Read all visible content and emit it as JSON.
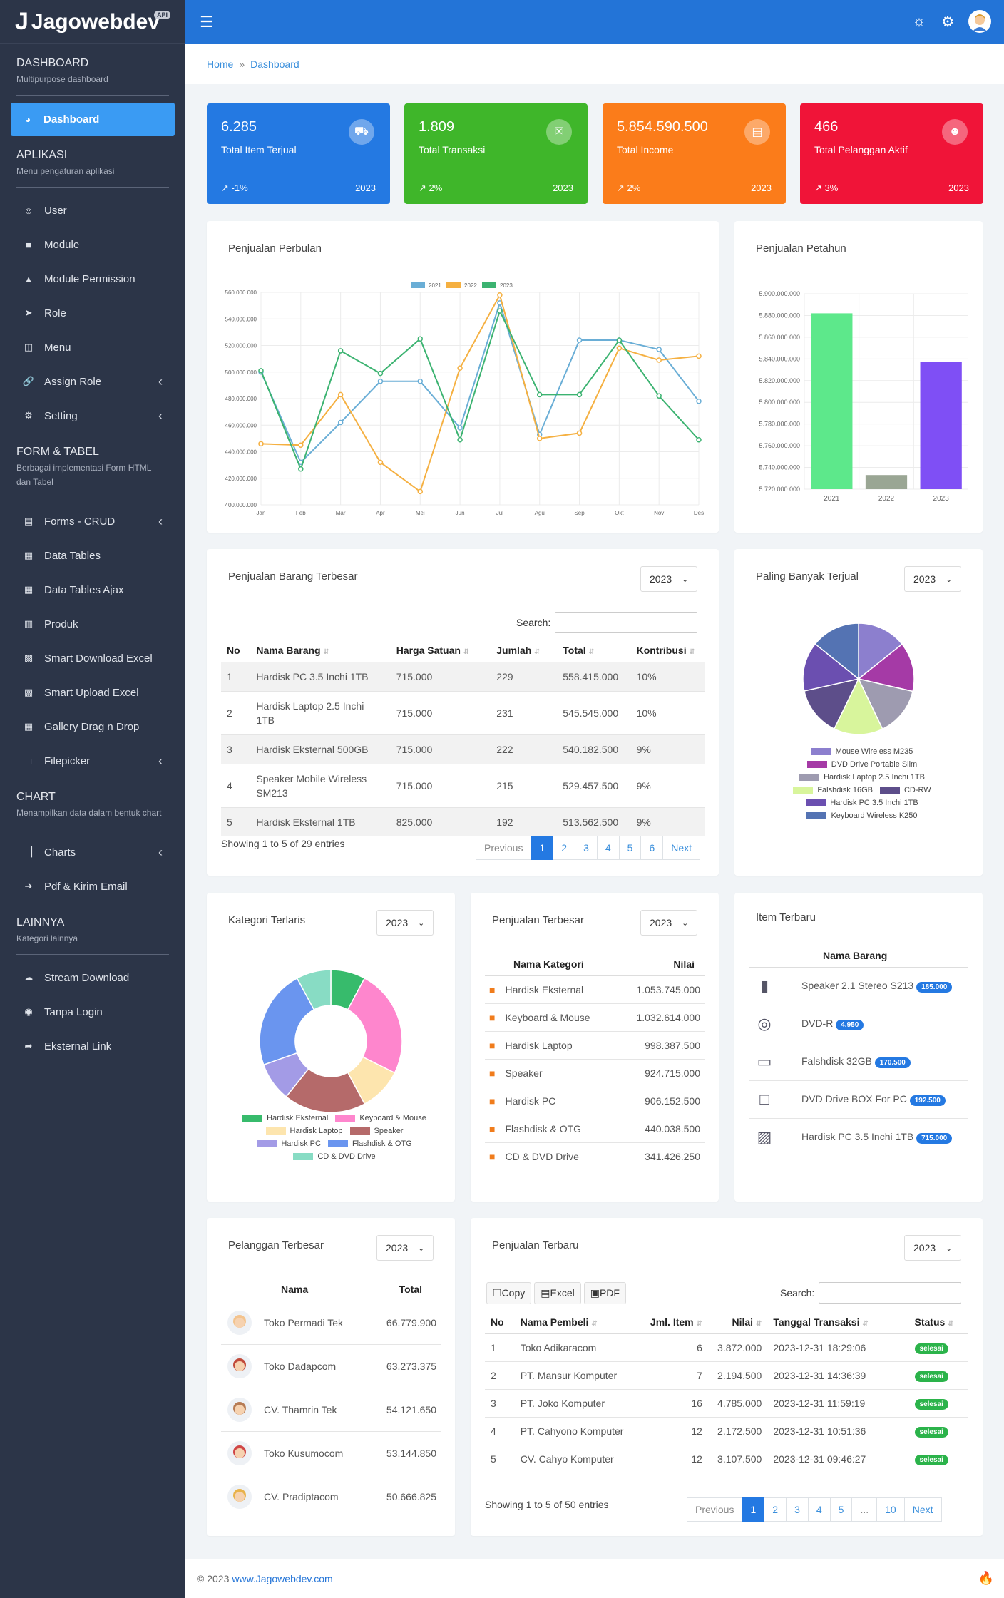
{
  "brand": {
    "name": "Jagowebdev",
    "badge": "API"
  },
  "sidebar": {
    "sections": [
      {
        "title": "DASHBOARD",
        "subtitle": "Multipurpose dashboard"
      },
      {
        "title": "APLIKASI",
        "subtitle": "Menu pengaturan aplikasi"
      },
      {
        "title": "FORM & TABEL",
        "subtitle": "Berbagai implementasi Form HTML dan Tabel"
      },
      {
        "title": "CHART",
        "subtitle": "Menampilkan data dalam bentuk chart"
      },
      {
        "title": "LAINNYA",
        "subtitle": "Kategori lainnya"
      }
    ],
    "active": "Dashboard",
    "aplikasi": [
      "User",
      "Module",
      "Module Permission",
      "Role",
      "Menu",
      "Assign Role",
      "Setting"
    ],
    "form": [
      "Forms - CRUD",
      "Data Tables",
      "Data Tables Ajax",
      "Produk",
      "Smart Download Excel",
      "Smart Upload Excel",
      "Gallery Drag n Drop",
      "Filepicker"
    ],
    "chart": [
      "Charts",
      "Pdf & Kirim Email"
    ],
    "lainnya": [
      "Stream Download",
      "Tanpa Login",
      "Eksternal Link"
    ]
  },
  "breadcrumb": {
    "home": "Home",
    "current": "Dashboard"
  },
  "stats": [
    {
      "value": "6.285",
      "label": "Total Item Terjual",
      "change": "-1%",
      "year": "2023",
      "color": "#2479e2",
      "icon": "truck-icon"
    },
    {
      "value": "1.809",
      "label": "Total Transaksi",
      "change": "2%",
      "year": "2023",
      "color": "#3fb62a",
      "icon": "bag-icon"
    },
    {
      "value": "5.854.590.500",
      "label": "Total Income",
      "change": "2%",
      "year": "2023",
      "color": "#fb7c1a",
      "icon": "money-icon"
    },
    {
      "value": "466",
      "label": "Total Pelanggan Aktif",
      "change": "3%",
      "year": "2023",
      "color": "#f01438",
      "icon": "user-icon"
    }
  ],
  "chart_data": [
    {
      "type": "line",
      "title": "Penjualan Perbulan",
      "categories": [
        "Jan",
        "Feb",
        "Mar",
        "Apr",
        "Mei",
        "Jun",
        "Jul",
        "Agu",
        "Sep",
        "Okt",
        "Nov",
        "Des"
      ],
      "series": [
        {
          "name": "2021",
          "color": "#6aaed6",
          "values": [
            500000000,
            432000000,
            462000000,
            493000000,
            493000000,
            458000000,
            552000000,
            453000000,
            524000000,
            524000000,
            517000000,
            478000000
          ]
        },
        {
          "name": "2022",
          "color": "#f5b041",
          "values": [
            446000000,
            445000000,
            483000000,
            432000000,
            410000000,
            503000000,
            558000000,
            450000000,
            454000000,
            518000000,
            509000000,
            512000000
          ]
        },
        {
          "name": "2023",
          "color": "#3cb371",
          "values": [
            501000000,
            427000000,
            516000000,
            499000000,
            525000000,
            449000000,
            546000000,
            483000000,
            483000000,
            524000000,
            482000000,
            449000000
          ]
        }
      ],
      "yticks": [
        "400.000.000",
        "420.000.000",
        "440.000.000",
        "460.000.000",
        "480.000.000",
        "500.000.000",
        "520.000.000",
        "540.000.000",
        "560.000.000"
      ],
      "ylim": [
        400000000,
        560000000
      ]
    },
    {
      "type": "bar",
      "title": "Penjualan Petahun",
      "categories": [
        "2021",
        "2022",
        "2023"
      ],
      "values": [
        5882000000,
        5733000000,
        5837000000
      ],
      "colors": [
        "#5de88b",
        "#9aa694",
        "#7f4ff5"
      ],
      "yticks": [
        "5.720.000.000",
        "5.740.000.000",
        "5.760.000.000",
        "5.780.000.000",
        "5.800.000.000",
        "5.820.000.000",
        "5.840.000.000",
        "5.860.000.000",
        "5.880.000.000",
        "5.900.000.000"
      ],
      "ylim": [
        5720000000,
        5900000000
      ]
    },
    {
      "type": "pie",
      "title": "Paling Banyak Terjual",
      "labels": [
        "Mouse Wireless M235",
        "DVD Drive Portable Slim",
        "Hardisk Laptop 2.5 Inchi 1TB",
        "Falshdisk 16GB",
        "CD-RW",
        "Hardisk PC 3.5 Inchi 1TB",
        "Keyboard Wireless K250"
      ],
      "values": [
        14.3,
        14.3,
        14.3,
        14.3,
        14.3,
        14.3,
        14.2
      ],
      "colors": [
        "#8c7fce",
        "#a53aa6",
        "#9e9bb0",
        "#d8f59c",
        "#5d4e8a",
        "#6b4fb0",
        "#5473b3"
      ]
    },
    {
      "type": "pie",
      "title": "Kategori Terlaris",
      "labels": [
        "Hardisk Eksternal",
        "Keyboard & Mouse",
        "Hardisk Laptop",
        "Speaker",
        "Hardisk PC",
        "Flashdisk & OTG",
        "CD & DVD Drive"
      ],
      "values": [
        8,
        25,
        10,
        19,
        9,
        23,
        8
      ],
      "colors": [
        "#37bb6c",
        "#fe86cd",
        "#fde5ae",
        "#b56a6a",
        "#a39be6",
        "#6a95ef",
        "#88dcc4"
      ]
    }
  ],
  "produk_table": {
    "title": "Penjualan Barang Terbesar",
    "year": "2023",
    "search_label": "Search:",
    "headers": [
      "No",
      "Nama Barang",
      "Harga Satuan",
      "Jumlah",
      "Total",
      "Kontribusi"
    ],
    "rows": [
      [
        "1",
        "Hardisk PC 3.5 Inchi 1TB",
        "715.000",
        "229",
        "558.415.000",
        "10%"
      ],
      [
        "2",
        "Hardisk Laptop 2.5 Inchi 1TB",
        "715.000",
        "231",
        "545.545.000",
        "10%"
      ],
      [
        "3",
        "Hardisk Eksternal 500GB",
        "715.000",
        "222",
        "540.182.500",
        "9%"
      ],
      [
        "4",
        "Speaker Mobile Wireless SM213",
        "715.000",
        "215",
        "529.457.500",
        "9%"
      ],
      [
        "5",
        "Hardisk Eksternal 1TB",
        "825.000",
        "192",
        "513.562.500",
        "9%"
      ]
    ],
    "info": "Showing 1 to 5 of 29 entries",
    "pages": [
      "Previous",
      "1",
      "2",
      "3",
      "4",
      "5",
      "6",
      "Next"
    ]
  },
  "paling_year": "2023",
  "kategori_year": "2023",
  "penjualan_kategori": {
    "title": "Penjualan Terbesar",
    "year": "2023",
    "headers": [
      "Nama Kategori",
      "Nilai"
    ],
    "rows": [
      [
        "Hardisk Eksternal",
        "1.053.745.000"
      ],
      [
        "Keyboard & Mouse",
        "1.032.614.000"
      ],
      [
        "Hardisk Laptop",
        "998.387.500"
      ],
      [
        "Speaker",
        "924.715.000"
      ],
      [
        "Hardisk PC",
        "906.152.500"
      ],
      [
        "Flashdisk & OTG",
        "440.038.500"
      ],
      [
        "CD & DVD Drive",
        "341.426.250"
      ]
    ]
  },
  "item_terbaru": {
    "title": "Item Terbaru",
    "header": "Nama Barang",
    "rows": [
      [
        "Speaker 2.1 Stereo S213",
        "185.000"
      ],
      [
        "DVD-R",
        "4.950"
      ],
      [
        "Falshdisk 32GB",
        "170.500"
      ],
      [
        "DVD Drive BOX For PC",
        "192.500"
      ],
      [
        "Hardisk PC 3.5 Inchi 1TB",
        "715.000"
      ]
    ]
  },
  "pelanggan": {
    "title": "Pelanggan Terbesar",
    "year": "2023",
    "headers": [
      "Nama",
      "Total"
    ],
    "rows": [
      [
        "Toko Permadi Tek",
        "66.779.900"
      ],
      [
        "Toko Dadapcom",
        "63.273.375"
      ],
      [
        "CV. Thamrin Tek",
        "54.121.650"
      ],
      [
        "Toko Kusumocom",
        "53.144.850"
      ],
      [
        "CV. Pradiptacom",
        "50.666.825"
      ]
    ]
  },
  "penjualan_terbaru": {
    "title": "Penjualan Terbaru",
    "year": "2023",
    "buttons": [
      "Copy",
      "Excel",
      "PDF"
    ],
    "search_label": "Search:",
    "headers": [
      "No",
      "Nama Pembeli",
      "Jml. Item",
      "Nilai",
      "Tanggal Transaksi",
      "Status"
    ],
    "rows": [
      [
        "1",
        "Toko Adikaracom",
        "6",
        "3.872.000",
        "2023-12-31 18:29:06",
        "selesai"
      ],
      [
        "2",
        "PT. Mansur Komputer",
        "7",
        "2.194.500",
        "2023-12-31 14:36:39",
        "selesai"
      ],
      [
        "3",
        "PT. Joko Komputer",
        "16",
        "4.785.000",
        "2023-12-31 11:59:19",
        "selesai"
      ],
      [
        "4",
        "PT. Cahyono Komputer",
        "12",
        "2.172.500",
        "2023-12-31 10:51:36",
        "selesai"
      ],
      [
        "5",
        "CV. Cahyo Komputer",
        "12",
        "3.107.500",
        "2023-12-31 09:46:27",
        "selesai"
      ]
    ],
    "info": "Showing 1 to 5 of 50 entries",
    "pages": [
      "Previous",
      "1",
      "2",
      "3",
      "4",
      "5",
      "...",
      "10",
      "Next"
    ]
  },
  "footer": {
    "copy": "© 2023",
    "link": "www.Jagowebdev.com"
  }
}
